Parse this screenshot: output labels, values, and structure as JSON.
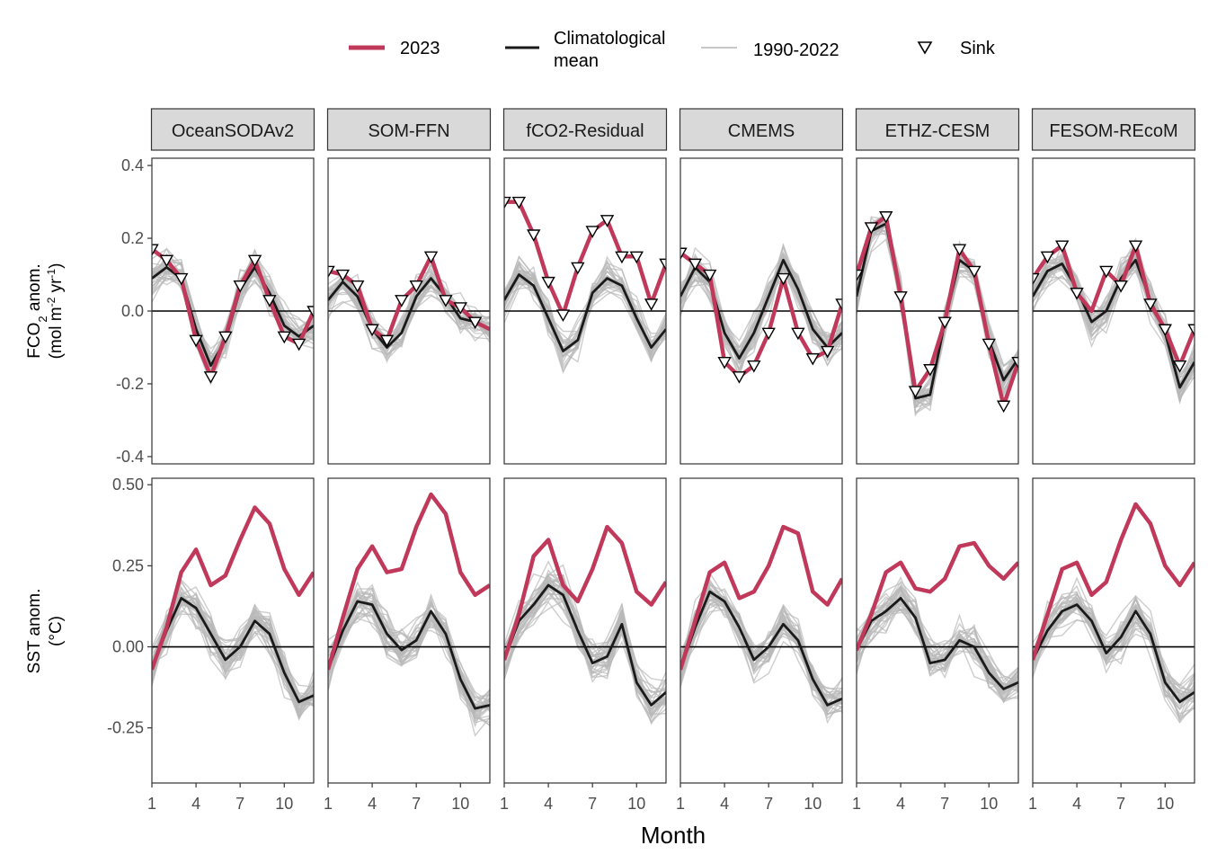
{
  "legend": {
    "items": [
      {
        "key": "y2023",
        "label": "2023",
        "color": "#c0395a"
      },
      {
        "key": "clim",
        "label_line1": "Climatological",
        "label_line2": "mean",
        "color": "#1a1a1a"
      },
      {
        "key": "hist",
        "label": "1990-2022",
        "color": "#c8c8c8"
      },
      {
        "key": "sink",
        "label": "Sink",
        "symbol": "triangle-down-icon"
      }
    ]
  },
  "axes": {
    "row1_ylabel_line1_pre": "FCO",
    "row1_ylabel_line1_sub": "2",
    "row1_ylabel_line1_post": " anom.",
    "row1_ylabel_line2_pre": "(mol m",
    "row1_ylabel_line2_sup1": "-2",
    "row1_ylabel_line2_mid": " yr",
    "row1_ylabel_line2_sup2": "-1",
    "row1_ylabel_line2_post": ")",
    "row2_ylabel_line1": "SST anom.",
    "row2_ylabel_line2": "(°C)",
    "xlabel": "Month",
    "row1_ticks": [
      "0.4",
      "0.2",
      "0.0",
      "-0.2",
      "-0.4"
    ],
    "row1_tick_values": [
      0.4,
      0.2,
      0.0,
      -0.2,
      -0.4
    ],
    "row2_ticks": [
      "0.50",
      "0.25",
      "0.00",
      "-0.25"
    ],
    "row2_tick_values": [
      0.5,
      0.25,
      0.0,
      -0.25
    ],
    "x_ticks": [
      "1",
      "4",
      "7",
      "10"
    ],
    "x_tick_values": [
      1,
      4,
      7,
      10
    ]
  },
  "chart_data": {
    "type": "line",
    "x": [
      1,
      2,
      3,
      4,
      5,
      6,
      7,
      8,
      9,
      10,
      11,
      12
    ],
    "x_range": [
      1,
      12
    ],
    "ylim_fco2": [
      -0.42,
      0.42
    ],
    "ylim_sst": [
      -0.42,
      0.52
    ],
    "colors": {
      "y2023": "#c0395a",
      "clim": "#1a1a1a",
      "hist": "#b8b8b8",
      "zero": "#000000"
    },
    "panels": [
      {
        "name": "OceanSODAv2",
        "fco2": {
          "y2023": [
            0.17,
            0.14,
            0.09,
            -0.08,
            -0.18,
            -0.07,
            0.07,
            0.14,
            0.03,
            -0.07,
            -0.09,
            0.0
          ],
          "clim": [
            0.09,
            0.12,
            0.09,
            -0.05,
            -0.15,
            -0.08,
            0.06,
            0.12,
            0.05,
            -0.04,
            -0.07,
            -0.04
          ],
          "sink": [
            1,
            2,
            3,
            4,
            5,
            6,
            7,
            8,
            9,
            10,
            11,
            12
          ]
        },
        "sst": {
          "y2023": [
            -0.07,
            0.06,
            0.23,
            0.3,
            0.19,
            0.22,
            0.33,
            0.43,
            0.38,
            0.24,
            0.16,
            0.23
          ],
          "clim": [
            -0.07,
            0.05,
            0.15,
            0.12,
            0.04,
            -0.04,
            0.0,
            0.08,
            0.04,
            -0.08,
            -0.17,
            -0.15
          ]
        }
      },
      {
        "name": "SOM-FFN",
        "fco2": {
          "y2023": [
            0.11,
            0.1,
            0.07,
            -0.05,
            -0.08,
            0.03,
            0.07,
            0.15,
            0.03,
            0.01,
            -0.03,
            -0.05
          ],
          "clim": [
            0.03,
            0.08,
            0.04,
            -0.05,
            -0.1,
            -0.06,
            0.04,
            0.09,
            0.04,
            -0.02,
            -0.03,
            -0.05
          ],
          "sink": [
            1,
            2,
            3,
            4,
            5,
            6,
            7,
            8,
            9,
            10,
            11
          ]
        },
        "sst": {
          "y2023": [
            -0.07,
            0.09,
            0.24,
            0.31,
            0.23,
            0.24,
            0.37,
            0.47,
            0.41,
            0.23,
            0.16,
            0.19
          ],
          "clim": [
            -0.07,
            0.05,
            0.14,
            0.13,
            0.04,
            -0.01,
            0.02,
            0.11,
            0.04,
            -0.1,
            -0.19,
            -0.18
          ]
        }
      },
      {
        "name": "fCO2-Residual",
        "fco2": {
          "y2023": [
            0.3,
            0.3,
            0.21,
            0.08,
            -0.01,
            0.12,
            0.22,
            0.25,
            0.15,
            0.15,
            0.02,
            0.13
          ],
          "clim": [
            0.03,
            0.1,
            0.07,
            -0.02,
            -0.11,
            -0.08,
            0.05,
            0.09,
            0.07,
            -0.02,
            -0.1,
            -0.05
          ],
          "sink": [
            1,
            2,
            3,
            4,
            5,
            6,
            7,
            8,
            9,
            10,
            11,
            12
          ]
        },
        "sst": {
          "y2023": [
            -0.04,
            0.1,
            0.28,
            0.33,
            0.19,
            0.14,
            0.24,
            0.37,
            0.32,
            0.17,
            0.13,
            0.2
          ],
          "clim": [
            -0.04,
            0.08,
            0.13,
            0.19,
            0.16,
            0.05,
            -0.05,
            -0.03,
            0.07,
            -0.11,
            -0.18,
            -0.14
          ]
        }
      },
      {
        "name": "CMEMS",
        "fco2": {
          "y2023": [
            0.16,
            0.13,
            0.1,
            -0.14,
            -0.18,
            -0.15,
            -0.06,
            0.09,
            -0.06,
            -0.13,
            -0.11,
            0.02
          ],
          "clim": [
            0.04,
            0.12,
            0.08,
            -0.06,
            -0.13,
            -0.06,
            0.04,
            0.14,
            0.06,
            -0.05,
            -0.1,
            -0.06
          ],
          "sink": [
            1,
            2,
            3,
            4,
            5,
            6,
            7,
            8,
            9,
            10,
            11,
            12
          ]
        },
        "sst": {
          "y2023": [
            -0.07,
            0.08,
            0.23,
            0.26,
            0.15,
            0.17,
            0.25,
            0.37,
            0.35,
            0.17,
            0.13,
            0.21
          ],
          "clim": [
            -0.07,
            0.06,
            0.17,
            0.14,
            0.06,
            -0.04,
            0.0,
            0.07,
            0.02,
            -0.1,
            -0.18,
            -0.16
          ]
        }
      },
      {
        "name": "ETHZ-CESM",
        "fco2": {
          "y2023": [
            0.1,
            0.23,
            0.26,
            0.04,
            -0.22,
            -0.16,
            -0.03,
            0.17,
            0.11,
            -0.09,
            -0.26,
            -0.14
          ],
          "clim": [
            0.04,
            0.22,
            0.24,
            0.04,
            -0.24,
            -0.23,
            -0.03,
            0.14,
            0.11,
            -0.08,
            -0.19,
            -0.13
          ],
          "sink": [
            1,
            2,
            3,
            4,
            5,
            6,
            7,
            8,
            9,
            10,
            11,
            12
          ]
        },
        "sst": {
          "y2023": [
            -0.01,
            0.1,
            0.23,
            0.26,
            0.18,
            0.17,
            0.21,
            0.31,
            0.32,
            0.25,
            0.21,
            0.26
          ],
          "clim": [
            -0.01,
            0.08,
            0.11,
            0.15,
            0.09,
            -0.05,
            -0.04,
            0.02,
            0.0,
            -0.08,
            -0.13,
            -0.11
          ]
        }
      },
      {
        "name": "FESOM-REcoM",
        "fco2": {
          "y2023": [
            0.09,
            0.15,
            0.18,
            0.05,
            0.0,
            0.11,
            0.07,
            0.18,
            0.02,
            -0.05,
            -0.15,
            -0.05
          ],
          "clim": [
            0.04,
            0.11,
            0.13,
            0.06,
            -0.03,
            0.0,
            0.09,
            0.14,
            0.03,
            -0.06,
            -0.21,
            -0.14
          ],
          "sink": [
            1,
            2,
            3,
            4,
            6,
            7,
            8,
            9,
            10,
            11,
            12
          ]
        },
        "sst": {
          "y2023": [
            -0.04,
            0.1,
            0.24,
            0.26,
            0.16,
            0.2,
            0.33,
            0.44,
            0.38,
            0.25,
            0.19,
            0.26
          ],
          "clim": [
            -0.04,
            0.05,
            0.11,
            0.13,
            0.08,
            -0.02,
            0.03,
            0.11,
            0.04,
            -0.11,
            -0.17,
            -0.14
          ]
        }
      }
    ]
  }
}
